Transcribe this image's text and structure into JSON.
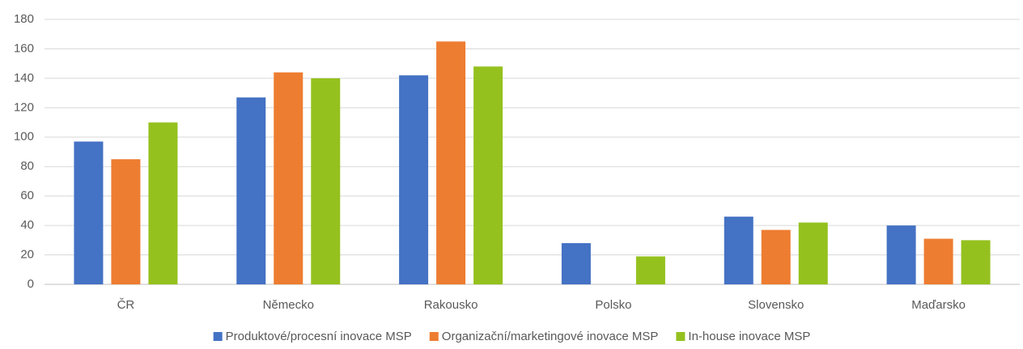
{
  "chart_data": {
    "type": "bar",
    "categories": [
      "ČR",
      "Německo",
      "Rakousko",
      "Polsko",
      "Slovensko",
      "Maďarsko"
    ],
    "series": [
      {
        "name": "Produktové/procesní inovace MSP",
        "color": "#4472c4",
        "values": [
          97,
          127,
          142,
          28,
          46,
          40
        ]
      },
      {
        "name": "Organizační/marketingové inovace MSP",
        "color": "#ed7d31",
        "values": [
          85,
          144,
          165,
          null,
          37,
          31
        ]
      },
      {
        "name": "In-house inovace MSP",
        "color": "#95c11f",
        "values": [
          110,
          140,
          148,
          19,
          42,
          30
        ]
      }
    ],
    "ylim": [
      0,
      180
    ],
    "yticks": [
      0,
      20,
      40,
      60,
      80,
      100,
      120,
      140,
      160,
      180
    ],
    "grid": true,
    "legend": "bottom"
  }
}
